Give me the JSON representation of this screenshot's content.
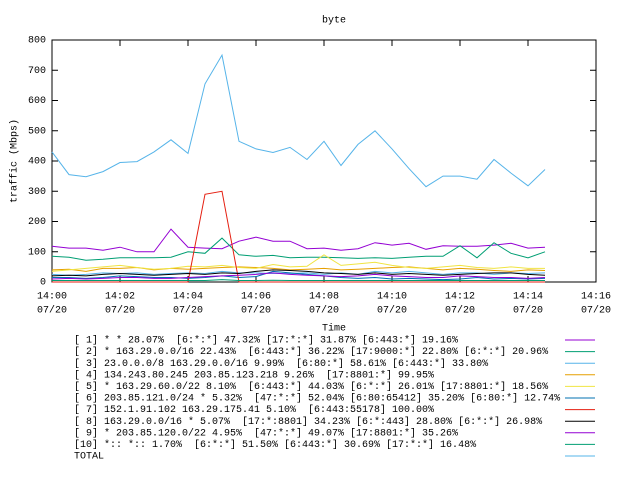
{
  "chart_data": {
    "type": "line",
    "title": "byte",
    "y_label": "traffic (Mbps)",
    "x_label": "Time",
    "x": [
      "14:00:00",
      "14:00:30",
      "14:01:00",
      "14:01:30",
      "14:02:00",
      "14:02:30",
      "14:03:00",
      "14:03:30",
      "14:04:00",
      "14:04:30",
      "14:05:00",
      "14:05:30",
      "14:06:00",
      "14:06:30",
      "14:07:00",
      "14:07:30",
      "14:08:00",
      "14:08:30",
      "14:09:00",
      "14:09:30",
      "14:10:00",
      "14:10:30",
      "14:11:00",
      "14:11:30",
      "14:12:00",
      "14:12:30",
      "14:13:00",
      "14:13:30",
      "14:14:00",
      "14:14:30"
    ],
    "xlim": [
      "14:00",
      "14:16"
    ],
    "xticks": [
      {
        "time": "14:00",
        "date": "07/20"
      },
      {
        "time": "14:02",
        "date": "07/20"
      },
      {
        "time": "14:04",
        "date": "07/20"
      },
      {
        "time": "14:06",
        "date": "07/20"
      },
      {
        "time": "14:08",
        "date": "07/20"
      },
      {
        "time": "14:10",
        "date": "07/20"
      },
      {
        "time": "14:12",
        "date": "07/20"
      },
      {
        "time": "14:14",
        "date": "07/20"
      },
      {
        "time": "14:16",
        "date": "07/20"
      }
    ],
    "ylim": [
      0,
      800
    ],
    "yticks": [
      0,
      100,
      200,
      300,
      400,
      500,
      600,
      700,
      800
    ],
    "series": [
      {
        "name": "[ 1] * * 28.07%  [6:*:*] 47.32% [17:*:*] 31.87% [6:443:*] 19.16%",
        "color": "#9400d3",
        "values": [
          118,
          112,
          112,
          105,
          115,
          100,
          100,
          175,
          115,
          112,
          110,
          135,
          148,
          135,
          135,
          110,
          112,
          105,
          110,
          130,
          122,
          128,
          108,
          120,
          118,
          118,
          122,
          128,
          112,
          115
        ]
      },
      {
        "name": "[ 2] * 163.29.0.0/16 22.43%  [6:443:*] 36.22% [17:9000:*] 22.80% [6:*:*] 20.96%",
        "color": "#009e73",
        "values": [
          85,
          82,
          72,
          75,
          80,
          80,
          80,
          82,
          100,
          95,
          145,
          90,
          85,
          88,
          80,
          82,
          82,
          80,
          78,
          80,
          78,
          82,
          85,
          85,
          120,
          80,
          130,
          95,
          80,
          100
        ]
      },
      {
        "name": "[ 3] 23.0.0.0/8 163.29.0.0/16 9.99%  [6:80:*] 58.61% [6:443:*] 33.80%",
        "color": "#56b4e9",
        "values": [
          25,
          22,
          25,
          30,
          28,
          30,
          25,
          28,
          30,
          28,
          35,
          30,
          30,
          28,
          28,
          30,
          25,
          30,
          25,
          35,
          30,
          35,
          30,
          25,
          30,
          30,
          25,
          30,
          28,
          30
        ]
      },
      {
        "name": "[ 4] 134.243.80.245 203.85.123.218 9.26%  [17:8801:*] 99.95%",
        "color": "#e69f00",
        "values": [
          40,
          42,
          35,
          45,
          45,
          48,
          40,
          45,
          42,
          45,
          48,
          50,
          48,
          45,
          40,
          42,
          45,
          40,
          42,
          45,
          48,
          50,
          45,
          40,
          45,
          42,
          38,
          35,
          40,
          38
        ]
      },
      {
        "name": "[ 5] * 163.29.60.0/22 8.10%  [6:443:*] 44.03% [6:*:*] 26.01% [17:8801:*] 18.56%",
        "color": "#f0e442",
        "values": [
          35,
          40,
          45,
          50,
          55,
          48,
          42,
          45,
          52,
          50,
          55,
          48,
          45,
          58,
          50,
          52,
          90,
          55,
          60,
          65,
          55,
          48,
          45,
          50,
          55,
          48,
          45,
          50,
          45,
          45
        ]
      },
      {
        "name": "[ 6] 203.85.121.0/24 * 5.32%  [47:*:*] 52.04% [6:80:65412] 35.20% [6:80:*] 12.74%",
        "color": "#0072b2",
        "values": [
          15,
          15,
          12,
          15,
          20,
          18,
          15,
          15,
          12,
          15,
          20,
          15,
          18,
          35,
          30,
          25,
          20,
          15,
          12,
          15,
          10,
          12,
          10,
          8,
          10,
          15,
          10,
          12,
          10,
          12
        ]
      },
      {
        "name": "[ 7] 152.1.91.102 163.29.175.41 5.10%  [6:443:55178] 100.00%",
        "color": "#e51e10",
        "values": [
          0,
          0,
          0,
          0,
          0,
          0,
          0,
          0,
          0,
          290,
          300,
          0,
          0,
          0,
          0,
          0,
          0,
          0,
          0,
          0,
          0,
          0,
          0,
          0,
          0,
          0,
          0,
          0,
          0,
          0
        ]
      },
      {
        "name": "[ 8] 163.29.0.0/16 * 5.07%  [17:*:8801] 34.23% [6:*:443] 28.80% [6:*:*] 26.98%",
        "color": "#000000",
        "values": [
          20,
          22,
          20,
          25,
          28,
          25,
          22,
          25,
          28,
          25,
          30,
          28,
          35,
          40,
          38,
          35,
          30,
          28,
          25,
          30,
          25,
          28,
          25,
          22,
          25,
          28,
          30,
          30,
          25,
          22
        ]
      },
      {
        "name": "[ 9] * 203.85.120.0/22 4.95%  [47:*:*] 49.07% [17:8801:*] 35.26%",
        "color": "#9400d3",
        "values": [
          10,
          12,
          10,
          12,
          15,
          15,
          12,
          12,
          15,
          18,
          20,
          22,
          25,
          30,
          25,
          22,
          20,
          18,
          20,
          25,
          20,
          18,
          15,
          15,
          20,
          18,
          15,
          15,
          12,
          15
        ]
      },
      {
        "name": "[10] *:: *:: 1.70%  [6:*:*] 51.50% [6:443:*] 30.69% [17:*:*] 16.48%",
        "color": "#009e73",
        "values": [
          5,
          5,
          5,
          5,
          5,
          5,
          5,
          5,
          5,
          5,
          8,
          5,
          5,
          6,
          5,
          5,
          5,
          5,
          5,
          5,
          5,
          5,
          5,
          5,
          5,
          5,
          5,
          5,
          5,
          5
        ]
      },
      {
        "name": "TOTAL",
        "color": "#56b4e9",
        "values": [
          430,
          355,
          348,
          365,
          395,
          398,
          430,
          470,
          425,
          655,
          750,
          465,
          440,
          428,
          445,
          405,
          465,
          385,
          455,
          500,
          440,
          375,
          315,
          350,
          350,
          340,
          405,
          360,
          318,
          372
        ]
      }
    ]
  }
}
